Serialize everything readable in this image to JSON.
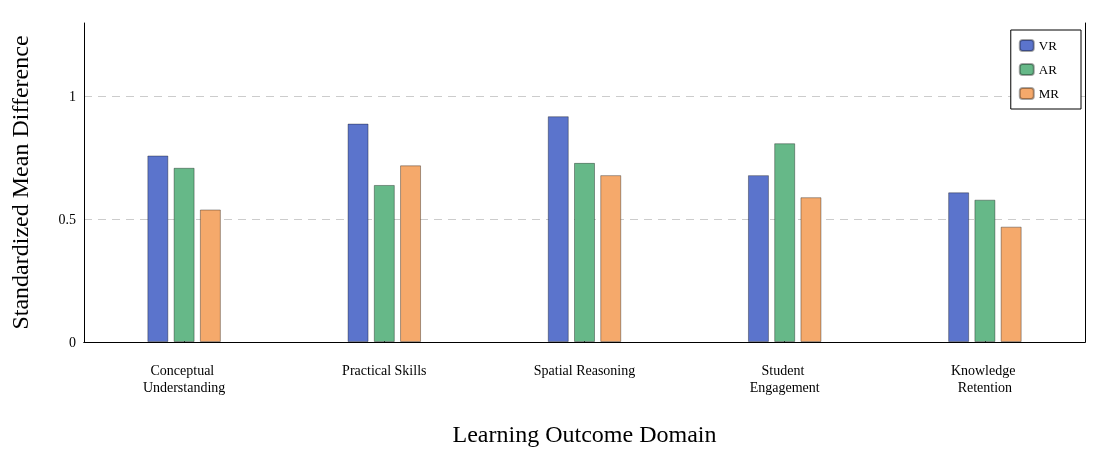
{
  "chart_data": {
    "type": "bar",
    "xlabel": "Learning Outcome Domain",
    "ylabel": "Standardized Mean Difference",
    "categories": [
      "Conceptual Understanding",
      "Practical Skills",
      "Spatial Reasoning",
      "Student Engagement",
      "Knowledge Retention"
    ],
    "series": [
      {
        "name": "VR",
        "color": "#5b74cc",
        "values": [
          0.76,
          0.89,
          0.92,
          0.68,
          0.61
        ]
      },
      {
        "name": "AR",
        "color": "#66b888",
        "values": [
          0.71,
          0.64,
          0.73,
          0.81,
          0.58
        ]
      },
      {
        "name": "MR",
        "color": "#f5a96b",
        "values": [
          0.54,
          0.72,
          0.68,
          0.59,
          0.47
        ]
      }
    ],
    "ylim": [
      0,
      1.3
    ],
    "yticks": [
      0,
      0.5,
      1
    ],
    "grid": "y",
    "legend": "top right"
  }
}
